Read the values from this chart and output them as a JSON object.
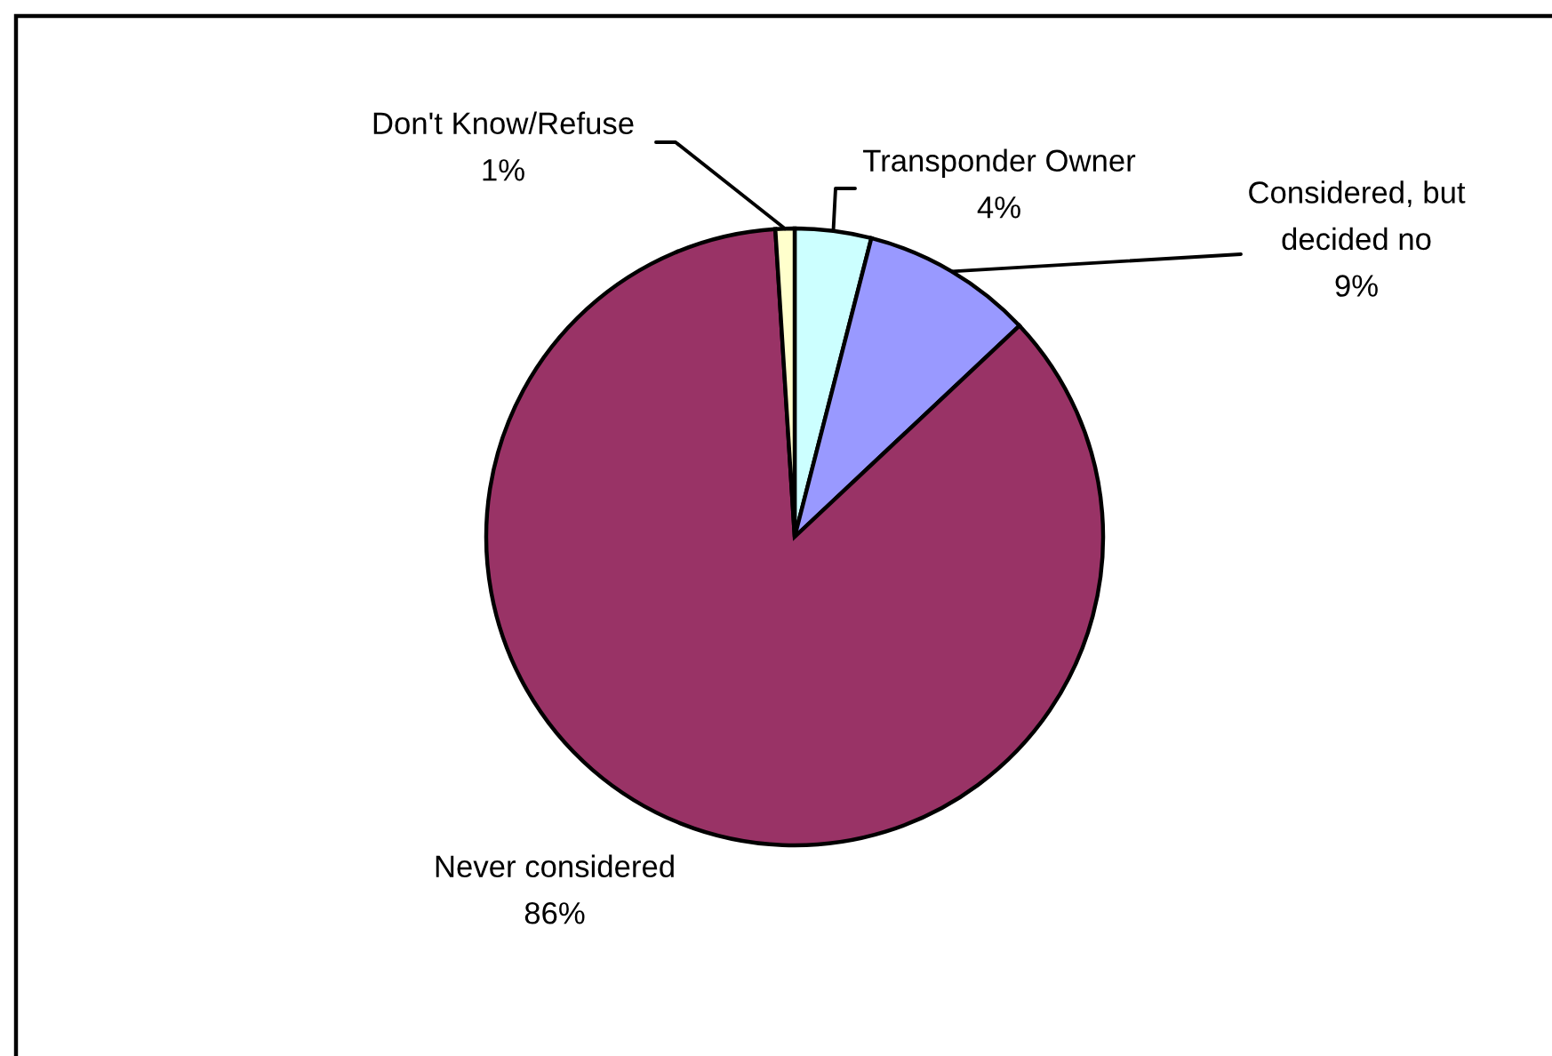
{
  "chart_data": {
    "type": "pie",
    "categories": [
      "Transponder Owner",
      "Considered, but decided no",
      "Never considered",
      "Don't Know/Refuse"
    ],
    "values": [
      4,
      9,
      86,
      1
    ],
    "colors": [
      "#ccffff",
      "#9999ff",
      "#993366",
      "#ffffcc"
    ],
    "value_labels": [
      "4%",
      "9%",
      "86%",
      "1%"
    ]
  }
}
